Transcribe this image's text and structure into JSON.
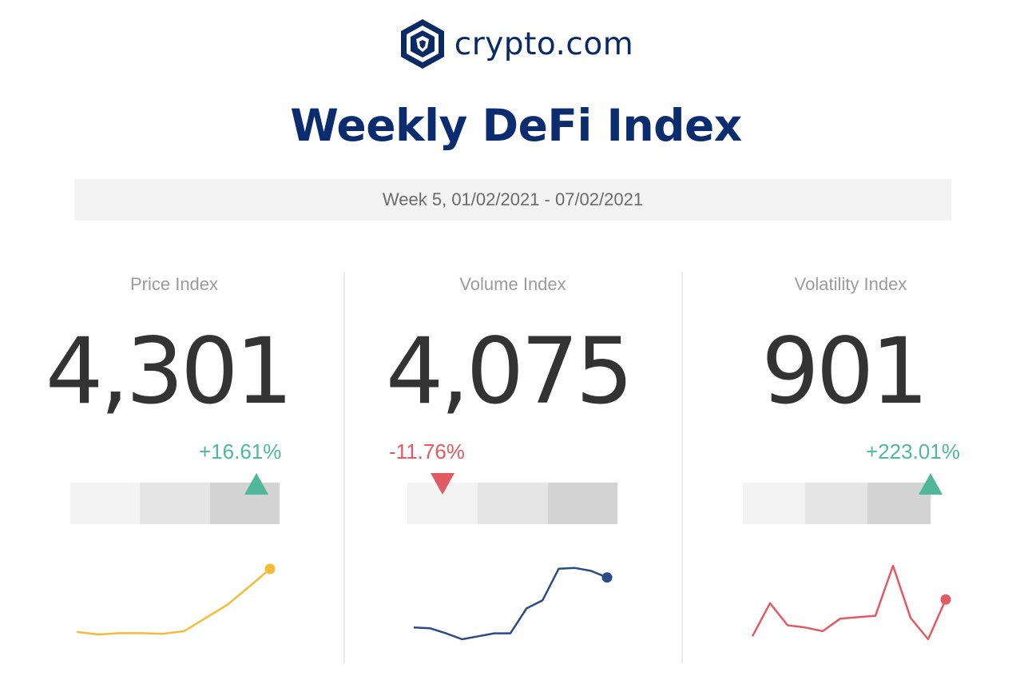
{
  "header": {
    "logo_icon": "crypto-com-lion-icon",
    "logo_text": "crypto.com",
    "title": "Weekly DeFi Index",
    "week": "Week 5, 01/02/2021 - 07/02/2021"
  },
  "colors": {
    "navy": "#0b2c6e",
    "up": "#4fb89b",
    "down": "#e25a62",
    "price_line": "#f5bb3a",
    "volume_line": "#2b4b87",
    "volatility_line": "#e25a62"
  },
  "indices": [
    {
      "label": "Price Index",
      "value": "4,301",
      "change": "+16.61%",
      "direction": "up",
      "level_segment": 3,
      "sparkline": [
        0.04,
        0.0,
        0.02,
        0.02,
        0.01,
        0.05,
        0.25,
        0.45,
        0.72,
        1.0
      ]
    },
    {
      "label": "Volume Index",
      "value": "4,075",
      "change": "-11.76%",
      "direction": "down",
      "level_segment": 1,
      "sparkline": [
        0.16,
        0.15,
        0.08,
        0.0,
        0.04,
        0.08,
        0.08,
        0.42,
        0.53,
        0.96,
        0.97,
        0.93,
        0.84
      ]
    },
    {
      "label": "Volatility Index",
      "value": "901",
      "change": "+223.01%",
      "direction": "up",
      "level_segment": 3,
      "sparkline": [
        0.04,
        0.49,
        0.19,
        0.16,
        0.11,
        0.28,
        0.3,
        0.32,
        1.0,
        0.29,
        0.0,
        0.54
      ]
    }
  ]
}
